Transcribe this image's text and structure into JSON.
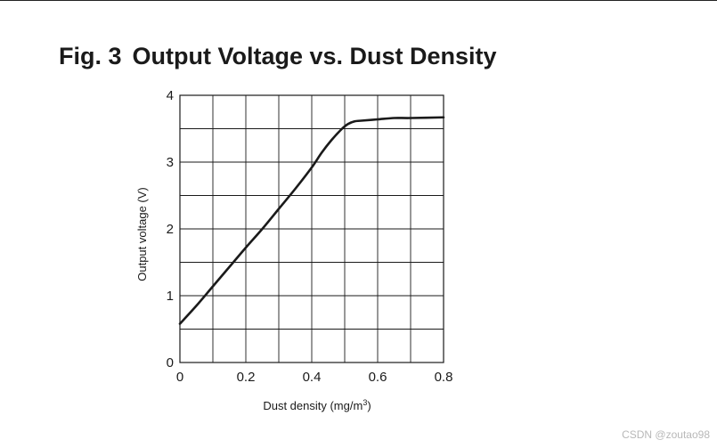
{
  "figure": {
    "number_label": "Fig. 3",
    "title": "Output Voltage vs. Dust Density"
  },
  "watermark": "CSDN @zoutao98",
  "colors": {
    "line": "#1a1a1a",
    "grid": "#1a1a1a",
    "text": "#1a1a1a",
    "watermark": "#b8b8b8"
  },
  "chart_data": {
    "type": "line",
    "title": "Output Voltage vs. Dust Density",
    "xlabel": "Dust density (mg/m3)",
    "xlabel_base": "Dust density (mg/m",
    "xlabel_sup": "3",
    "xlabel_tail": ")",
    "ylabel": "Output voltage (V)",
    "xlim": [
      0,
      0.8
    ],
    "ylim": [
      0,
      4
    ],
    "x_ticks": [
      0,
      0.2,
      0.4,
      0.6,
      0.8
    ],
    "x_tick_labels": [
      "0",
      "0.2",
      "0.4",
      "0.6",
      "0.8"
    ],
    "y_ticks": [
      0,
      1,
      2,
      3,
      4
    ],
    "y_tick_labels": [
      "0",
      "1",
      "2",
      "3",
      "4"
    ],
    "grid_x_step": 0.1,
    "grid_y_step": 0.5,
    "grid": true,
    "series": [
      {
        "x": [
          0,
          0.05,
          0.1,
          0.15,
          0.2,
          0.25,
          0.3,
          0.35,
          0.4,
          0.43,
          0.46,
          0.49,
          0.51,
          0.53,
          0.55,
          0.6,
          0.65,
          0.7,
          0.8
        ],
        "y": [
          0.58,
          0.85,
          1.14,
          1.43,
          1.72,
          2.0,
          2.3,
          2.6,
          2.92,
          3.14,
          3.33,
          3.49,
          3.57,
          3.61,
          3.62,
          3.64,
          3.66,
          3.66,
          3.67
        ]
      }
    ]
  }
}
